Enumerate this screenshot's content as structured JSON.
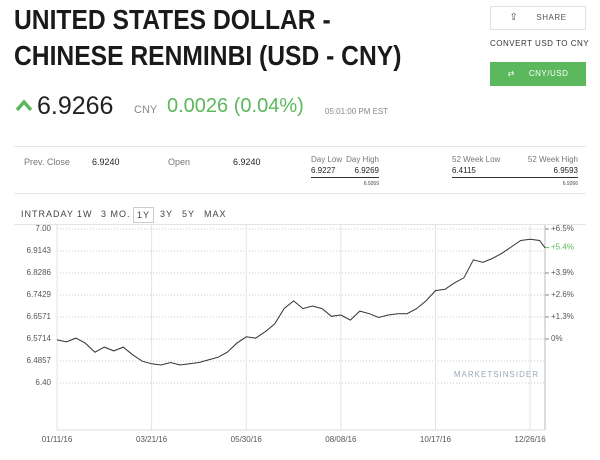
{
  "header": {
    "title_lines": [
      "UNITED STATES DOLLAR -",
      "CHINESE RENMINBI (USD - CNY)"
    ]
  },
  "actions": {
    "share": "SHARE",
    "convert": "CONVERT USD TO CNY",
    "pair": "CNY/USD"
  },
  "quote": {
    "price": "6.9266",
    "currency": "CNY",
    "change": "0.0026 (0.04%)",
    "time": "05:01:00 PM EST"
  },
  "stats": {
    "prev_close": {
      "label": "Prev. Close",
      "value": "6.9240"
    },
    "open": {
      "label": "Open",
      "value": "6.9240"
    },
    "day_range": {
      "low_label": "Day Low",
      "high_label": "Day High",
      "low": "6.9227",
      "high": "6.9269",
      "marker": "6.9269"
    },
    "week52_range": {
      "low_label": "52 Week Low",
      "high_label": "52 Week High",
      "low": "6.4115",
      "high": "6.9593",
      "marker": "6.9266"
    }
  },
  "tabs": [
    "INTRADAY",
    "1W",
    "3 MO.",
    "1Y",
    "3Y",
    "5Y",
    "MAX"
  ],
  "selected_tab": 3,
  "chart_data": {
    "type": "line",
    "x": [
      "01/11/16",
      "01/18/16",
      "01/25/16",
      "02/01/16",
      "02/08/16",
      "02/15/16",
      "02/22/16",
      "02/29/16",
      "03/07/16",
      "03/14/16",
      "03/21/16",
      "03/28/16",
      "04/04/16",
      "04/11/16",
      "04/18/16",
      "04/25/16",
      "05/02/16",
      "05/09/16",
      "05/16/16",
      "05/23/16",
      "05/30/16",
      "06/06/16",
      "06/13/16",
      "06/20/16",
      "06/27/16",
      "07/04/16",
      "07/11/16",
      "07/18/16",
      "07/25/16",
      "08/01/16",
      "08/08/16",
      "08/15/16",
      "08/22/16",
      "08/29/16",
      "09/05/16",
      "09/12/16",
      "09/19/16",
      "09/26/16",
      "10/03/16",
      "10/10/16",
      "10/17/16",
      "10/24/16",
      "10/31/16",
      "11/07/16",
      "11/14/16",
      "11/21/16",
      "11/28/16",
      "12/05/16",
      "12/12/16",
      "12/19/16",
      "12/26/16",
      "01/02/17",
      "01/06/17"
    ],
    "series": [
      {
        "name": "USD - CNY",
        "color": "#333333",
        "values": [
          6.568,
          6.56,
          6.575,
          6.555,
          6.52,
          6.54,
          6.525,
          6.54,
          6.51,
          6.485,
          6.475,
          6.47,
          6.48,
          6.47,
          6.475,
          6.48,
          6.49,
          6.5,
          6.52,
          6.555,
          6.58,
          6.575,
          6.6,
          6.63,
          6.69,
          6.72,
          6.69,
          6.7,
          6.69,
          6.66,
          6.665,
          6.645,
          6.68,
          6.67,
          6.655,
          6.665,
          6.67,
          6.67,
          6.69,
          6.72,
          6.76,
          6.765,
          6.79,
          6.81,
          6.88,
          6.87,
          6.885,
          6.905,
          6.93,
          6.955,
          6.96,
          6.955,
          6.9266
        ]
      }
    ],
    "xlim": [
      "01/11/16",
      "01/06/17"
    ],
    "xticks": [
      "01/11/16",
      "03/21/16",
      "05/30/16",
      "08/08/16",
      "10/17/16",
      "12/26/16"
    ],
    "ylim": [
      6.4,
      7.0
    ],
    "yticks": [
      {
        "value": 7.0,
        "label": "7.00"
      },
      6.9143,
      6.8286,
      6.7429,
      6.6571,
      6.5714,
      6.4857,
      {
        "value": 6.4,
        "label": "6.40"
      }
    ],
    "y2lim": [
      -2.6,
      6.5
    ],
    "y2ticks": [
      {
        "value": 6.5,
        "label": "+6.5%"
      },
      {
        "value": 3.9,
        "label": "+3.9%"
      },
      {
        "value": 2.6,
        "label": "+2.6%"
      },
      {
        "value": 1.3,
        "label": "+1.3%"
      },
      {
        "value": 0,
        "label": "0%"
      }
    ],
    "y2_current": {
      "value": 5.4,
      "label": "+5.4%"
    },
    "current_color": "#5cb85c",
    "grid": true,
    "watermark": "MARKETSINSIDER"
  }
}
